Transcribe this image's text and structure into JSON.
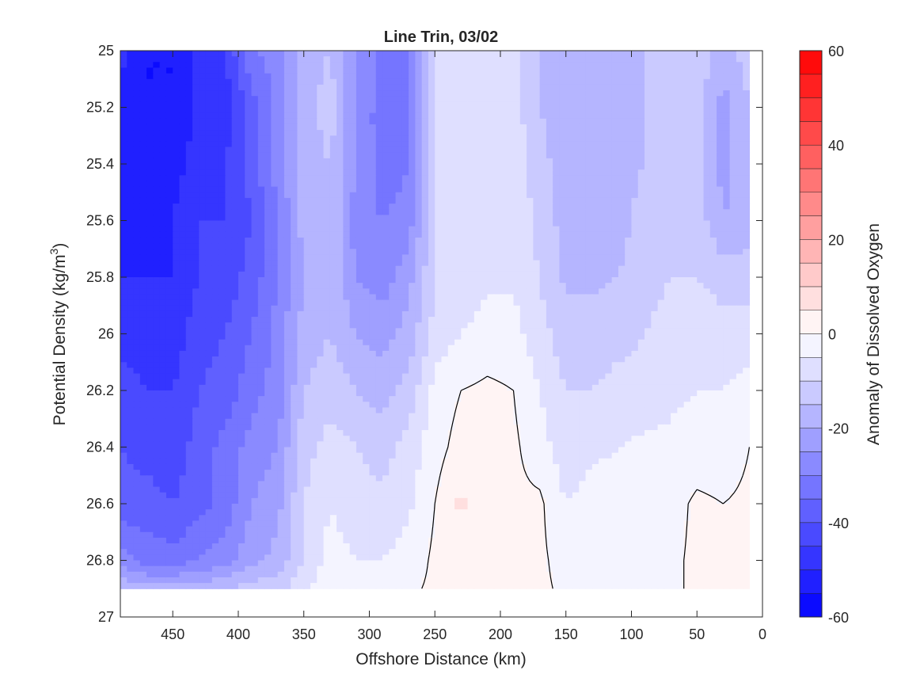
{
  "chart_data": {
    "type": "contour",
    "title": "Line Trin, 03/02",
    "xlabel": "Offshore Distance (km)",
    "ylabel_main": "Potential Density (kg/m",
    "ylabel_sup": "3",
    "ylabel_close": ")",
    "colorbar_label": "Anomaly of Dissolved Oxygen",
    "xlim": [
      490,
      0
    ],
    "x_reversed": true,
    "ylim": [
      25,
      27
    ],
    "y_reversed": true,
    "x_ticks": [
      450,
      400,
      350,
      300,
      250,
      200,
      150,
      100,
      50,
      0
    ],
    "y_ticks": [
      25,
      25.2,
      25.4,
      25.6,
      25.8,
      26,
      26.2,
      26.4,
      26.6,
      26.8,
      27
    ],
    "y_tick_labels": [
      "25",
      "25.2",
      "25.4",
      "25.6",
      "25.8",
      "26",
      "26.2",
      "26.4",
      "26.6",
      "26.8",
      "27"
    ],
    "colorbar_range": [
      -60,
      60
    ],
    "colorbar_ticks": [
      -60,
      -40,
      -20,
      0,
      20,
      40,
      60
    ],
    "contour_levels": [
      -60,
      -55,
      -50,
      -45,
      -40,
      -35,
      -30,
      -25,
      -20,
      -15,
      -10,
      -5,
      0,
      5,
      10,
      15,
      20,
      25,
      30,
      35,
      40,
      45,
      50,
      55,
      60
    ],
    "data_coverage": {
      "x_range": [
        490,
        10
      ],
      "y_range": [
        25,
        26.9
      ]
    },
    "colormap": {
      "negative_end": "#0000ff",
      "zero": "#ffffff",
      "positive_end": "#ff0000"
    },
    "zero_contour_color": "#000000",
    "anomaly_grid": {
      "x": [
        490,
        470,
        450,
        430,
        410,
        390,
        370,
        350,
        330,
        310,
        290,
        270,
        250,
        230,
        210,
        190,
        170,
        150,
        130,
        110,
        90,
        70,
        50,
        30,
        10
      ],
      "y": [
        25,
        25.2,
        25.4,
        25.6,
        25.8,
        26,
        26.2,
        26.4,
        26.6,
        26.8,
        26.9
      ],
      "values": [
        [
          -48,
          -55,
          -55,
          -48,
          -45,
          -30,
          -28,
          -18,
          -15,
          -25,
          -33,
          -30,
          -8,
          -6,
          -6,
          -8,
          -15,
          -18,
          -18,
          -17,
          -15,
          -12,
          -12,
          -18,
          -12
        ],
        [
          -52,
          -55,
          -55,
          -48,
          -48,
          -38,
          -28,
          -18,
          -12,
          -25,
          -33,
          -30,
          -8,
          -6,
          -6,
          -8,
          -15,
          -18,
          -18,
          -18,
          -15,
          -12,
          -12,
          -22,
          -15
        ],
        [
          -52,
          -53,
          -52,
          -48,
          -45,
          -38,
          -28,
          -18,
          -15,
          -25,
          -33,
          -30,
          -10,
          -8,
          -6,
          -6,
          -13,
          -18,
          -18,
          -17,
          -15,
          -13,
          -12,
          -22,
          -15
        ],
        [
          -50,
          -52,
          -50,
          -45,
          -45,
          -40,
          -30,
          -18,
          -15,
          -28,
          -30,
          -28,
          -10,
          -8,
          -6,
          -6,
          -12,
          -17,
          -18,
          -17,
          -13,
          -12,
          -12,
          -20,
          -18
        ],
        [
          -50,
          -50,
          -50,
          -45,
          -43,
          -38,
          -30,
          -20,
          -15,
          -25,
          -28,
          -22,
          -10,
          -8,
          -6,
          -6,
          -10,
          -16,
          -16,
          -15,
          -12,
          -10,
          -10,
          -12,
          -12
        ],
        [
          -48,
          -48,
          -48,
          -42,
          -40,
          -35,
          -28,
          -18,
          -15,
          -20,
          -22,
          -18,
          -8,
          -5,
          -3,
          -3,
          -8,
          -13,
          -13,
          -12,
          -10,
          -8,
          -7,
          -8,
          -8
        ],
        [
          -42,
          -45,
          -45,
          -40,
          -38,
          -32,
          -28,
          -15,
          -12,
          -15,
          -17,
          -13,
          -3,
          0,
          1,
          0,
          -5,
          -10,
          -10,
          -8,
          -8,
          -6,
          -5,
          -5,
          -3
        ],
        [
          -40,
          -42,
          -43,
          -38,
          -33,
          -28,
          -25,
          -12,
          -8,
          -10,
          -12,
          -8,
          -2,
          2,
          3,
          1,
          -3,
          -8,
          -6,
          -5,
          -4,
          -4,
          -3,
          -3,
          0
        ],
        [
          -38,
          -38,
          -40,
          -37,
          -33,
          -25,
          -22,
          -10,
          -5,
          -8,
          -9,
          -6,
          0,
          6,
          2,
          1,
          1,
          -5,
          -3,
          -3,
          -2,
          -2,
          1,
          0,
          1
        ],
        [
          -28,
          -32,
          -33,
          -30,
          -27,
          -22,
          -18,
          -10,
          -3,
          -5,
          -5,
          -3,
          1,
          1,
          0,
          1,
          1,
          -2,
          -2,
          -2,
          -2,
          -1,
          1,
          1,
          1
        ],
        [
          -15,
          -18,
          -18,
          -18,
          -15,
          -13,
          -12,
          -6,
          -1,
          -2,
          -2,
          -1,
          1,
          1,
          0,
          1,
          1,
          -1,
          -1,
          -1,
          -1,
          -1,
          1,
          1,
          1
        ]
      ]
    }
  }
}
